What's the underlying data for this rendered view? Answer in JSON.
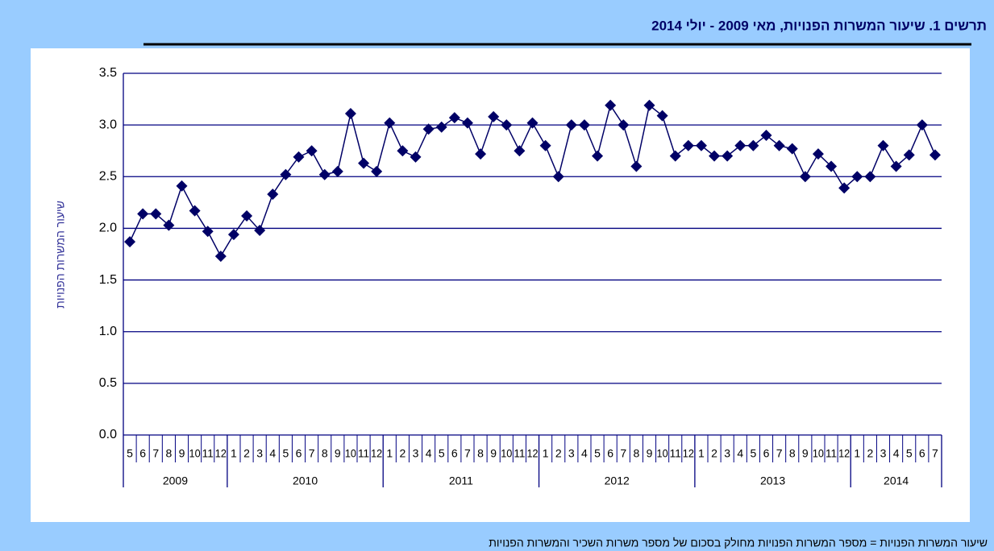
{
  "chart_data": {
    "type": "line",
    "title": "תרשים 1. שיעור המשרות הפנויות, מאי 2009 - יולי 2014",
    "y_label": "שיעור המשרות הפנויות",
    "footnote": "שיעור המשרות הפנויות = מספר המשרות הפנויות מחולק בסכום של מספר משרות השכיר והמשרות הפנויות",
    "groups": [
      {
        "label": "2009",
        "months": [
          "5",
          "6",
          "7",
          "8",
          "9",
          "10",
          "11",
          "12"
        ]
      },
      {
        "label": "2010",
        "months": [
          "1",
          "2",
          "3",
          "4",
          "5",
          "6",
          "7",
          "8",
          "9",
          "10",
          "11",
          "12"
        ]
      },
      {
        "label": "2011",
        "months": [
          "1",
          "2",
          "3",
          "4",
          "5",
          "6",
          "7",
          "8",
          "9",
          "10",
          "11",
          "12"
        ]
      },
      {
        "label": "2012",
        "months": [
          "1",
          "2",
          "3",
          "4",
          "5",
          "6",
          "7",
          "8",
          "9",
          "10",
          "11",
          "12"
        ]
      },
      {
        "label": "2013",
        "months": [
          "1",
          "2",
          "3",
          "4",
          "5",
          "6",
          "7",
          "8",
          "9",
          "10",
          "11",
          "12"
        ]
      },
      {
        "label": "2014",
        "months": [
          "1",
          "2",
          "3",
          "4",
          "5",
          "6",
          "7"
        ]
      }
    ],
    "values": [
      1.87,
      2.14,
      2.14,
      2.03,
      2.41,
      2.17,
      1.97,
      1.73,
      1.94,
      2.12,
      1.98,
      2.33,
      2.52,
      2.69,
      2.75,
      2.52,
      2.55,
      3.11,
      2.63,
      2.55,
      3.02,
      2.75,
      2.69,
      2.96,
      2.98,
      3.07,
      3.02,
      2.72,
      3.08,
      3.0,
      2.75,
      3.02,
      2.8,
      2.5,
      3.0,
      3.0,
      2.7,
      3.19,
      3.0,
      2.6,
      3.19,
      3.09,
      2.7,
      2.8,
      2.8,
      2.7,
      2.7,
      2.8,
      2.8,
      2.9,
      2.8,
      2.77,
      2.5,
      2.72,
      2.6,
      2.39,
      2.5,
      2.5,
      2.8,
      2.6,
      2.71,
      3.0,
      2.71
    ],
    "color": "#000066",
    "ylim": [
      0,
      3.5
    ],
    "yticks": [
      {
        "value": 0,
        "label": "0.0"
      },
      0.5,
      {
        "value": 1,
        "label": "1.0"
      },
      1.5,
      {
        "value": 2,
        "label": "2.0"
      },
      2.5,
      {
        "value": 3,
        "label": "3.0"
      },
      3.5
    ],
    "grid": true
  }
}
